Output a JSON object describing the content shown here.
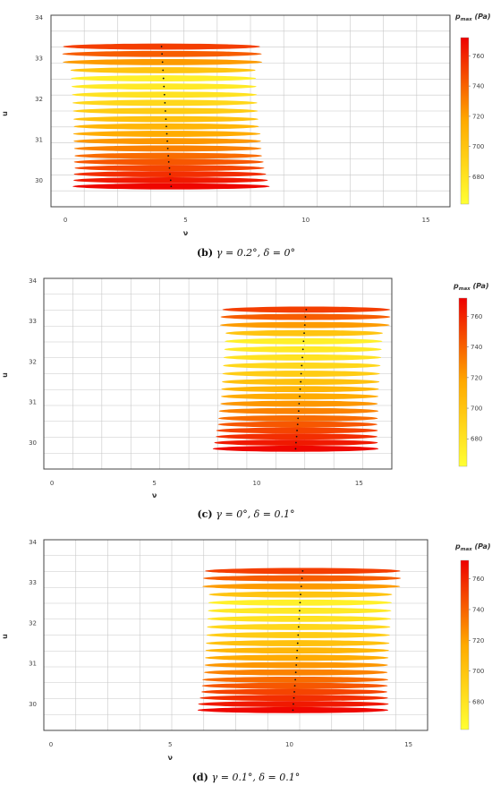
{
  "colorbar": {
    "title": "p_max (Pa)",
    "title_main": "p",
    "title_sub": "max",
    "title_unit": "(Pa)",
    "ticks": [
      680,
      700,
      720,
      740,
      760
    ],
    "range": [
      662,
      772
    ],
    "color_low": "#ffff33",
    "color_mid": "#ffaa00",
    "color_high": "#ee0000"
  },
  "chart_data": [
    {
      "type": "scatter",
      "panel_letter": "(b)",
      "caption_text": "γ = 0.2°,  δ = 0°",
      "xlabel": "ν",
      "ylabel": "u",
      "xlim": [
        -0.6,
        16.0
      ],
      "ylim": [
        29.35,
        34.05
      ],
      "xticks": [
        0,
        5,
        10,
        15
      ],
      "yticks": [
        30,
        31,
        32,
        33
      ],
      "grid": true,
      "v_centers": [
        4.4,
        4.38,
        4.35,
        4.33,
        4.3,
        4.28,
        4.26,
        4.24,
        4.22,
        4.2,
        4.18,
        4.16,
        4.14,
        4.12,
        4.1,
        4.08,
        4.06,
        4.04,
        4.02,
        4.0
      ],
      "u_values": [
        29.85,
        30.0,
        30.15,
        30.3,
        30.45,
        30.6,
        30.78,
        30.96,
        31.14,
        31.32,
        31.5,
        31.7,
        31.9,
        32.1,
        32.3,
        32.5,
        32.7,
        32.9,
        33.1,
        33.28
      ],
      "half_widths": [
        4.1,
        4.05,
        4.0,
        3.95,
        3.95,
        3.9,
        3.9,
        3.9,
        3.9,
        3.85,
        3.85,
        3.85,
        3.85,
        3.85,
        3.85,
        3.85,
        3.85,
        4.15,
        4.15,
        4.1
      ],
      "p_max": [
        770,
        764,
        757,
        750,
        744,
        737,
        730,
        723,
        716,
        709,
        702,
        695,
        688,
        681,
        676,
        672,
        700,
        722,
        742,
        752
      ]
    },
    {
      "type": "scatter",
      "panel_letter": "(c)",
      "caption_text": "γ = 0°,  δ = 0.1°",
      "xlabel": "ν",
      "ylabel": "u",
      "xlim": [
        -0.4,
        16.6
      ],
      "ylim": [
        29.35,
        34.05
      ],
      "xticks": [
        0,
        5,
        10,
        15
      ],
      "yticks": [
        30,
        31,
        32,
        33
      ],
      "grid": true,
      "v_centers": [
        11.9,
        11.92,
        11.95,
        11.97,
        12.0,
        12.02,
        12.05,
        12.07,
        12.1,
        12.12,
        12.15,
        12.17,
        12.2,
        12.23,
        12.26,
        12.29,
        12.32,
        12.35,
        12.38,
        12.42
      ],
      "u_values": [
        29.85,
        30.0,
        30.15,
        30.3,
        30.45,
        30.6,
        30.78,
        30.96,
        31.14,
        31.32,
        31.5,
        31.7,
        31.9,
        32.1,
        32.3,
        32.5,
        32.7,
        32.9,
        33.1,
        33.28
      ],
      "half_widths": [
        4.05,
        4.0,
        3.95,
        3.95,
        3.9,
        3.9,
        3.9,
        3.85,
        3.85,
        3.85,
        3.85,
        3.85,
        3.85,
        3.85,
        3.85,
        3.85,
        3.85,
        4.15,
        4.15,
        4.1
      ],
      "p_max": [
        770,
        764,
        757,
        750,
        744,
        737,
        730,
        723,
        716,
        709,
        702,
        695,
        688,
        681,
        676,
        672,
        700,
        722,
        742,
        752
      ]
    },
    {
      "type": "scatter",
      "panel_letter": "(d)",
      "caption_text": "γ = 0.1°,  δ = 0.1°",
      "xlabel": "ν",
      "ylabel": "u",
      "xlim": [
        -0.3,
        15.8
      ],
      "ylim": [
        29.35,
        34.05
      ],
      "xticks": [
        0,
        5,
        10,
        15
      ],
      "yticks": [
        30,
        31,
        32,
        33
      ],
      "grid": true,
      "v_centers": [
        10.15,
        10.17,
        10.19,
        10.21,
        10.23,
        10.25,
        10.27,
        10.29,
        10.31,
        10.33,
        10.35,
        10.37,
        10.39,
        10.41,
        10.43,
        10.45,
        10.47,
        10.5,
        10.53,
        10.56
      ],
      "u_values": [
        29.85,
        30.0,
        30.15,
        30.3,
        30.45,
        30.6,
        30.78,
        30.96,
        31.14,
        31.32,
        31.5,
        31.7,
        31.9,
        32.1,
        32.3,
        32.5,
        32.7,
        32.9,
        33.1,
        33.28
      ],
      "half_widths": [
        4.0,
        4.0,
        3.95,
        3.9,
        3.9,
        3.9,
        3.85,
        3.85,
        3.85,
        3.85,
        3.85,
        3.85,
        3.85,
        3.85,
        3.85,
        3.85,
        3.85,
        4.15,
        4.15,
        4.1
      ],
      "p_max": [
        770,
        764,
        757,
        750,
        744,
        737,
        730,
        723,
        716,
        709,
        702,
        695,
        688,
        681,
        676,
        672,
        700,
        722,
        742,
        752
      ]
    }
  ]
}
